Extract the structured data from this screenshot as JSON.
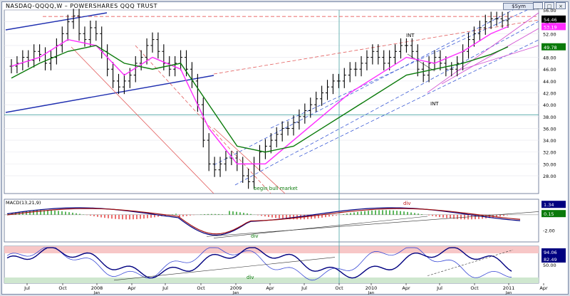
{
  "window": {
    "title": "NASDAQ-QQQQ,W – POWERSHARES QQQ TRUST",
    "sym_button": "$Sym",
    "controls": [
      "_",
      "□",
      "×"
    ]
  },
  "chart_data": [
    {
      "type": "line",
      "panel": "price",
      "title": "NASDAQ-QQQQ,W – POWERSHARES QQQ TRUST",
      "ylim": [
        25,
        56
      ],
      "y_ticks": [
        28,
        30,
        32,
        34,
        36,
        38,
        40,
        42,
        44,
        46,
        48,
        50,
        52,
        54,
        56
      ],
      "y_tick_labels": [
        "28.00",
        "30.00",
        "32.00",
        "34.00",
        "36.00",
        "38.00",
        "40.00",
        "42.00",
        "44.00",
        "46.00",
        "48.00",
        "50.00",
        "52.00",
        "54.00",
        "56.00"
      ],
      "value_tags": [
        {
          "value": 54.46,
          "label": "54.46",
          "color": "#000000"
        },
        {
          "value": 53.19,
          "label": "53.19",
          "color": "#ff2cff"
        },
        {
          "value": 49.78,
          "label": "49.78",
          "color": "#0a7a0a"
        }
      ],
      "series": [
        {
          "color": "#000000",
          "style": "ohlc_bars",
          "x": [
            0,
            8,
            16,
            24,
            32,
            40,
            48,
            56,
            64,
            72,
            80,
            88,
            96,
            104,
            112,
            120,
            128,
            136,
            144,
            152,
            160,
            168,
            176,
            184,
            192,
            200,
            208,
            216,
            224,
            232,
            240,
            248,
            256,
            264,
            272,
            280,
            288,
            296,
            304,
            312,
            320,
            328,
            336,
            344,
            352,
            360,
            368,
            376,
            384,
            392,
            400,
            408,
            416,
            424,
            432,
            440,
            448,
            456,
            464,
            472,
            480,
            488,
            496,
            504,
            512,
            520,
            528,
            536,
            544,
            552,
            560,
            568,
            576,
            584,
            592,
            600,
            608,
            616,
            624,
            632,
            640,
            648,
            656,
            664,
            672,
            680,
            688,
            696,
            704
          ],
          "values": [
            46.5,
            47,
            48,
            47.5,
            49,
            48.5,
            47,
            48,
            50,
            52,
            54,
            55,
            52,
            51,
            53,
            52,
            49,
            46,
            44,
            43,
            44,
            45,
            47,
            48,
            50,
            51,
            49,
            47,
            46,
            47,
            48,
            46,
            44,
            40,
            34,
            30,
            29,
            30,
            31,
            31,
            30,
            28,
            27,
            30,
            32,
            33,
            34,
            35,
            36,
            36,
            37,
            38,
            39,
            40,
            41,
            42,
            43,
            44,
            44,
            45,
            46,
            46,
            47,
            48,
            49,
            48,
            47,
            48,
            49,
            50,
            50,
            49,
            46,
            45,
            47,
            48,
            47,
            46,
            46,
            47,
            49,
            51,
            52,
            53,
            54,
            54.5,
            54.5,
            54.2,
            54.46
          ]
        },
        {
          "color": "#ff2cff",
          "style": "line",
          "x": [
            0,
            40,
            80,
            120,
            160,
            200,
            240,
            280,
            320,
            360,
            400,
            440,
            480,
            520,
            560,
            600,
            640,
            680,
            704
          ],
          "values": [
            46.5,
            48,
            51,
            50,
            45,
            48,
            46,
            36,
            30,
            30,
            34,
            38,
            42,
            45,
            48,
            47,
            49,
            52,
            53.19
          ]
        },
        {
          "color": "#0a7a0a",
          "style": "line",
          "x": [
            0,
            40,
            80,
            120,
            160,
            200,
            240,
            280,
            320,
            360,
            400,
            440,
            480,
            520,
            560,
            600,
            640,
            680,
            704
          ],
          "values": [
            44.5,
            47,
            49,
            50,
            47,
            46,
            47,
            40,
            33,
            32,
            33,
            36,
            39,
            42,
            45,
            46,
            47,
            48.5,
            49.78
          ]
        }
      ],
      "annotations": [
        "begin bull market",
        "INT",
        "INT"
      ]
    },
    {
      "type": "line",
      "panel": "macd",
      "title": "MACD(13,21,9)",
      "ylim": [
        -3.5,
        2
      ],
      "y_ticks": [
        -2
      ],
      "y_tick_labels": [
        "-2.00"
      ],
      "value_tags": [
        {
          "value": 1.34,
          "label": "1.34",
          "color": "#000080"
        },
        {
          "value": 0.15,
          "label": "0.15",
          "color": "#0a7a0a"
        }
      ],
      "annotations": [
        "div",
        "div"
      ]
    },
    {
      "type": "line",
      "panel": "oscillator",
      "ylim": [
        0,
        100
      ],
      "y_ticks": [
        50
      ],
      "y_tick_labels": [
        "50.00"
      ],
      "value_tags": [
        {
          "value": 94.06,
          "label": "94.06",
          "color": "#000080"
        },
        {
          "value": 82.49,
          "label": "82.49",
          "color": "#000080"
        }
      ],
      "annotations": [
        "div"
      ]
    }
  ],
  "x_axis": {
    "labels": [
      "Jul",
      "Oct",
      "2008",
      "Apr",
      "Jul",
      "Oct",
      "2009",
      "Apr",
      "Jul",
      "Oct",
      "2010",
      "Apr",
      "Jul",
      "Oct",
      "2011",
      "Apr"
    ],
    "sublabels": [
      "",
      "",
      "Jan",
      "",
      "",
      "",
      "Jan",
      "",
      "",
      "",
      "Jan",
      "",
      "",
      "",
      "Jan",
      ""
    ]
  }
}
